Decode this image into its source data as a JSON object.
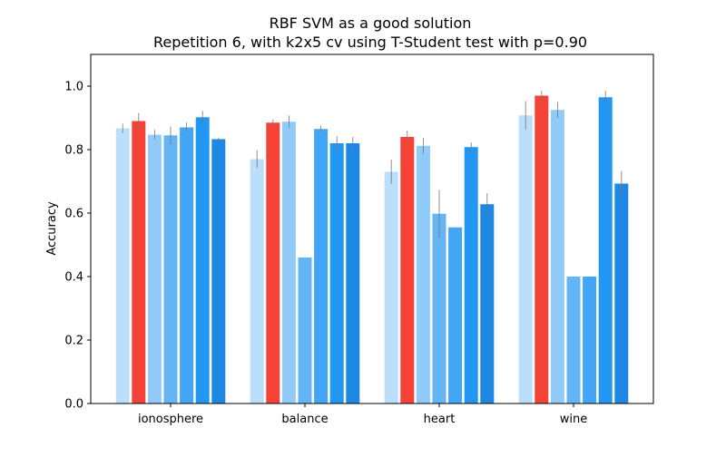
{
  "chart_data": {
    "type": "bar",
    "title": "RBF SVM as a good solution",
    "subtitle": "Repetition 6, with k2x5 cv using T-Student test with p=0.90",
    "xlabel": "",
    "ylabel": "Accuracy",
    "ylim": [
      0,
      1.1
    ],
    "yticks": [
      "0.0",
      "0.2",
      "0.4",
      "0.6",
      "0.8",
      "1.0"
    ],
    "grid": false,
    "legend": "none",
    "categories": [
      "ionosphere",
      "balance",
      "heart",
      "wine"
    ],
    "highlight_index": 1,
    "colors": [
      "#bbdefb",
      "#f44336",
      "#90caf9",
      "#64b5f6",
      "#42a5f5",
      "#2196f3",
      "#1e88e5"
    ],
    "error_color": "#777777",
    "series": [
      {
        "values": [
          0.867,
          0.77,
          0.73,
          0.908
        ],
        "errors": [
          0.015,
          0.028,
          0.038,
          0.045
        ]
      },
      {
        "values": [
          0.89,
          0.885,
          0.84,
          0.97
        ],
        "errors": [
          0.025,
          0.01,
          0.02,
          0.015
        ]
      },
      {
        "values": [
          0.847,
          0.888,
          0.812,
          0.925
        ],
        "errors": [
          0.015,
          0.02,
          0.025,
          0.025
        ]
      },
      {
        "values": [
          0.845,
          0.46,
          0.598,
          0.4
        ],
        "errors": [
          0.028,
          0.0,
          0.075,
          0.0
        ]
      },
      {
        "values": [
          0.87,
          0.865,
          0.555,
          0.4
        ],
        "errors": [
          0.015,
          0.01,
          0.0,
          0.0
        ]
      },
      {
        "values": [
          0.902,
          0.82,
          0.808,
          0.965
        ],
        "errors": [
          0.02,
          0.022,
          0.015,
          0.02
        ]
      },
      {
        "values": [
          0.833,
          0.82,
          0.628,
          0.693
        ],
        "errors": [
          0.005,
          0.02,
          0.035,
          0.04
        ]
      }
    ]
  }
}
